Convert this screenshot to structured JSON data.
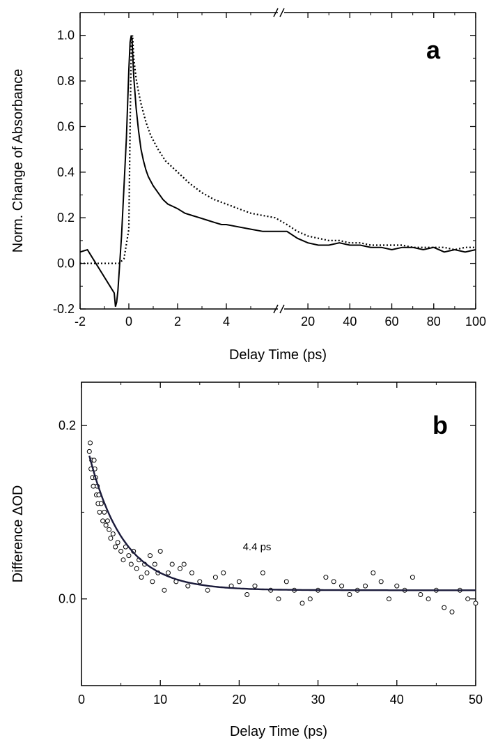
{
  "chart_data": [
    {
      "panel": "a",
      "type": "line",
      "panel_label": "a",
      "xlabel": "Delay Time (ps)",
      "ylabel": "Norm. Change of Absorbance",
      "broken_x_axis": true,
      "segments": [
        {
          "xlim": [
            -2,
            6
          ],
          "ticks": [
            -2,
            0,
            2,
            4
          ],
          "tick_labels": [
            "-2",
            "0",
            "2",
            "4"
          ]
        },
        {
          "xlim": [
            10,
            100
          ],
          "ticks": [
            20,
            40,
            60,
            80,
            100
          ],
          "tick_labels": [
            "20",
            "40",
            "60",
            "80",
            "100"
          ]
        }
      ],
      "ylim": [
        -0.2,
        1.1
      ],
      "yticks": [
        -0.2,
        0.0,
        0.2,
        0.4,
        0.6,
        0.8,
        1.0
      ],
      "ytick_labels": [
        "-0.2",
        "0.0",
        "0.2",
        "0.4",
        "0.6",
        "0.8",
        "1.0"
      ],
      "series": [
        {
          "style": "solid",
          "color": "#000000",
          "x": [
            -2.0,
            -1.7,
            -0.6,
            -0.55,
            -0.5,
            -0.45,
            -0.3,
            -0.1,
            0.0,
            0.05,
            0.1,
            0.13,
            0.2,
            0.3,
            0.4,
            0.5,
            0.6,
            0.7,
            0.8,
            1.0,
            1.2,
            1.4,
            1.6,
            1.8,
            2.0,
            2.3,
            2.6,
            2.9,
            3.2,
            3.5,
            3.8,
            4.0,
            4.5,
            5.0,
            5.5,
            6.0,
            10,
            15,
            20,
            25,
            30,
            35,
            40,
            45,
            50,
            55,
            60,
            65,
            70,
            75,
            80,
            85,
            90,
            95,
            100
          ],
          "y": [
            0.05,
            0.06,
            -0.13,
            -0.19,
            -0.17,
            -0.12,
            0.12,
            0.55,
            0.85,
            0.97,
            1.0,
            0.98,
            0.82,
            0.68,
            0.58,
            0.5,
            0.45,
            0.41,
            0.38,
            0.34,
            0.31,
            0.28,
            0.26,
            0.25,
            0.24,
            0.22,
            0.21,
            0.2,
            0.19,
            0.18,
            0.17,
            0.17,
            0.16,
            0.15,
            0.14,
            0.14,
            0.14,
            0.11,
            0.09,
            0.08,
            0.08,
            0.09,
            0.08,
            0.08,
            0.07,
            0.07,
            0.06,
            0.07,
            0.07,
            0.06,
            0.07,
            0.05,
            0.06,
            0.05,
            0.06
          ]
        },
        {
          "style": "dotted",
          "color": "#000000",
          "x": [
            -2.0,
            -1.0,
            -0.4,
            -0.2,
            0.0,
            0.05,
            0.1,
            0.15,
            0.2,
            0.3,
            0.4,
            0.5,
            0.7,
            0.9,
            1.2,
            1.5,
            2.0,
            2.5,
            3.0,
            3.5,
            4.0,
            4.5,
            5.0,
            5.5,
            6.0,
            10,
            15,
            20,
            25,
            30,
            35,
            40,
            45,
            50,
            55,
            60,
            65,
            70,
            75,
            80,
            85,
            90,
            95,
            100
          ],
          "y": [
            0.0,
            0.0,
            0.0,
            0.02,
            0.15,
            0.6,
            0.95,
            1.0,
            0.9,
            0.81,
            0.75,
            0.7,
            0.62,
            0.56,
            0.5,
            0.45,
            0.4,
            0.35,
            0.31,
            0.28,
            0.26,
            0.24,
            0.22,
            0.21,
            0.2,
            0.17,
            0.14,
            0.12,
            0.11,
            0.1,
            0.1,
            0.09,
            0.09,
            0.08,
            0.08,
            0.08,
            0.08,
            0.07,
            0.07,
            0.07,
            0.07,
            0.06,
            0.07,
            0.07
          ]
        }
      ]
    },
    {
      "panel": "b",
      "type": "scatter",
      "panel_label": "b",
      "xlabel": "Delay Time (ps)",
      "ylabel": "Difference ΔOD",
      "xlim": [
        0,
        50
      ],
      "ylim": [
        -0.1,
        0.25
      ],
      "xticks": [
        0,
        10,
        20,
        30,
        40,
        50
      ],
      "xtick_labels": [
        "0",
        "10",
        "20",
        "30",
        "40",
        "50"
      ],
      "yticks": [
        0.0,
        0.2
      ],
      "ytick_labels": [
        "0.0",
        "0.2"
      ],
      "annotation": "4.4 ps",
      "fit": {
        "color": "#1a1a3a",
        "model": "y = y0 + A*exp(-(x - x0)/tau)",
        "params": {
          "y0": 0.01,
          "A": 0.155,
          "x0": 1.0,
          "tau": 4.4
        },
        "x_range": [
          1.0,
          50
        ]
      },
      "points": {
        "x": [
          1.0,
          1.1,
          1.2,
          1.3,
          1.4,
          1.5,
          1.6,
          1.7,
          1.8,
          1.9,
          2.0,
          2.1,
          2.2,
          2.3,
          2.5,
          2.7,
          2.9,
          3.1,
          3.3,
          3.5,
          3.7,
          4.0,
          4.3,
          4.6,
          5.0,
          5.3,
          5.6,
          6.0,
          6.3,
          6.6,
          7.0,
          7.3,
          7.6,
          8.0,
          8.3,
          8.7,
          9.0,
          9.3,
          9.7,
          10.0,
          10.5,
          11.0,
          11.5,
          12.0,
          12.5,
          13.0,
          13.5,
          14.0,
          15.0,
          16.0,
          17.0,
          18.0,
          19.0,
          20.0,
          21.0,
          22.0,
          23.0,
          24.0,
          25.0,
          26.0,
          27.0,
          28.0,
          29.0,
          30.0,
          31.0,
          32.0,
          33.0,
          34.0,
          35.0,
          36.0,
          37.0,
          38.0,
          39.0,
          40.0,
          41.0,
          42.0,
          43.0,
          44.0,
          45.0,
          46.0,
          47.0,
          48.0,
          49.0,
          50.0
        ],
        "y": [
          0.17,
          0.18,
          0.15,
          0.16,
          0.14,
          0.13,
          0.16,
          0.15,
          0.14,
          0.12,
          0.13,
          0.11,
          0.12,
          0.1,
          0.11,
          0.09,
          0.1,
          0.085,
          0.09,
          0.08,
          0.07,
          0.075,
          0.06,
          0.065,
          0.055,
          0.045,
          0.06,
          0.05,
          0.04,
          0.055,
          0.035,
          0.045,
          0.025,
          0.04,
          0.03,
          0.05,
          0.02,
          0.04,
          0.03,
          0.055,
          0.01,
          0.03,
          0.04,
          0.02,
          0.035,
          0.04,
          0.015,
          0.03,
          0.02,
          0.01,
          0.025,
          0.03,
          0.015,
          0.02,
          0.005,
          0.015,
          0.03,
          0.01,
          0.0,
          0.02,
          0.01,
          -0.005,
          0.0,
          0.01,
          0.025,
          0.02,
          0.015,
          0.005,
          0.01,
          0.015,
          0.03,
          0.02,
          0.0,
          0.015,
          0.01,
          0.025,
          0.005,
          0.0,
          0.01,
          -0.01,
          -0.015,
          0.01,
          0.0,
          -0.005
        ]
      }
    }
  ]
}
